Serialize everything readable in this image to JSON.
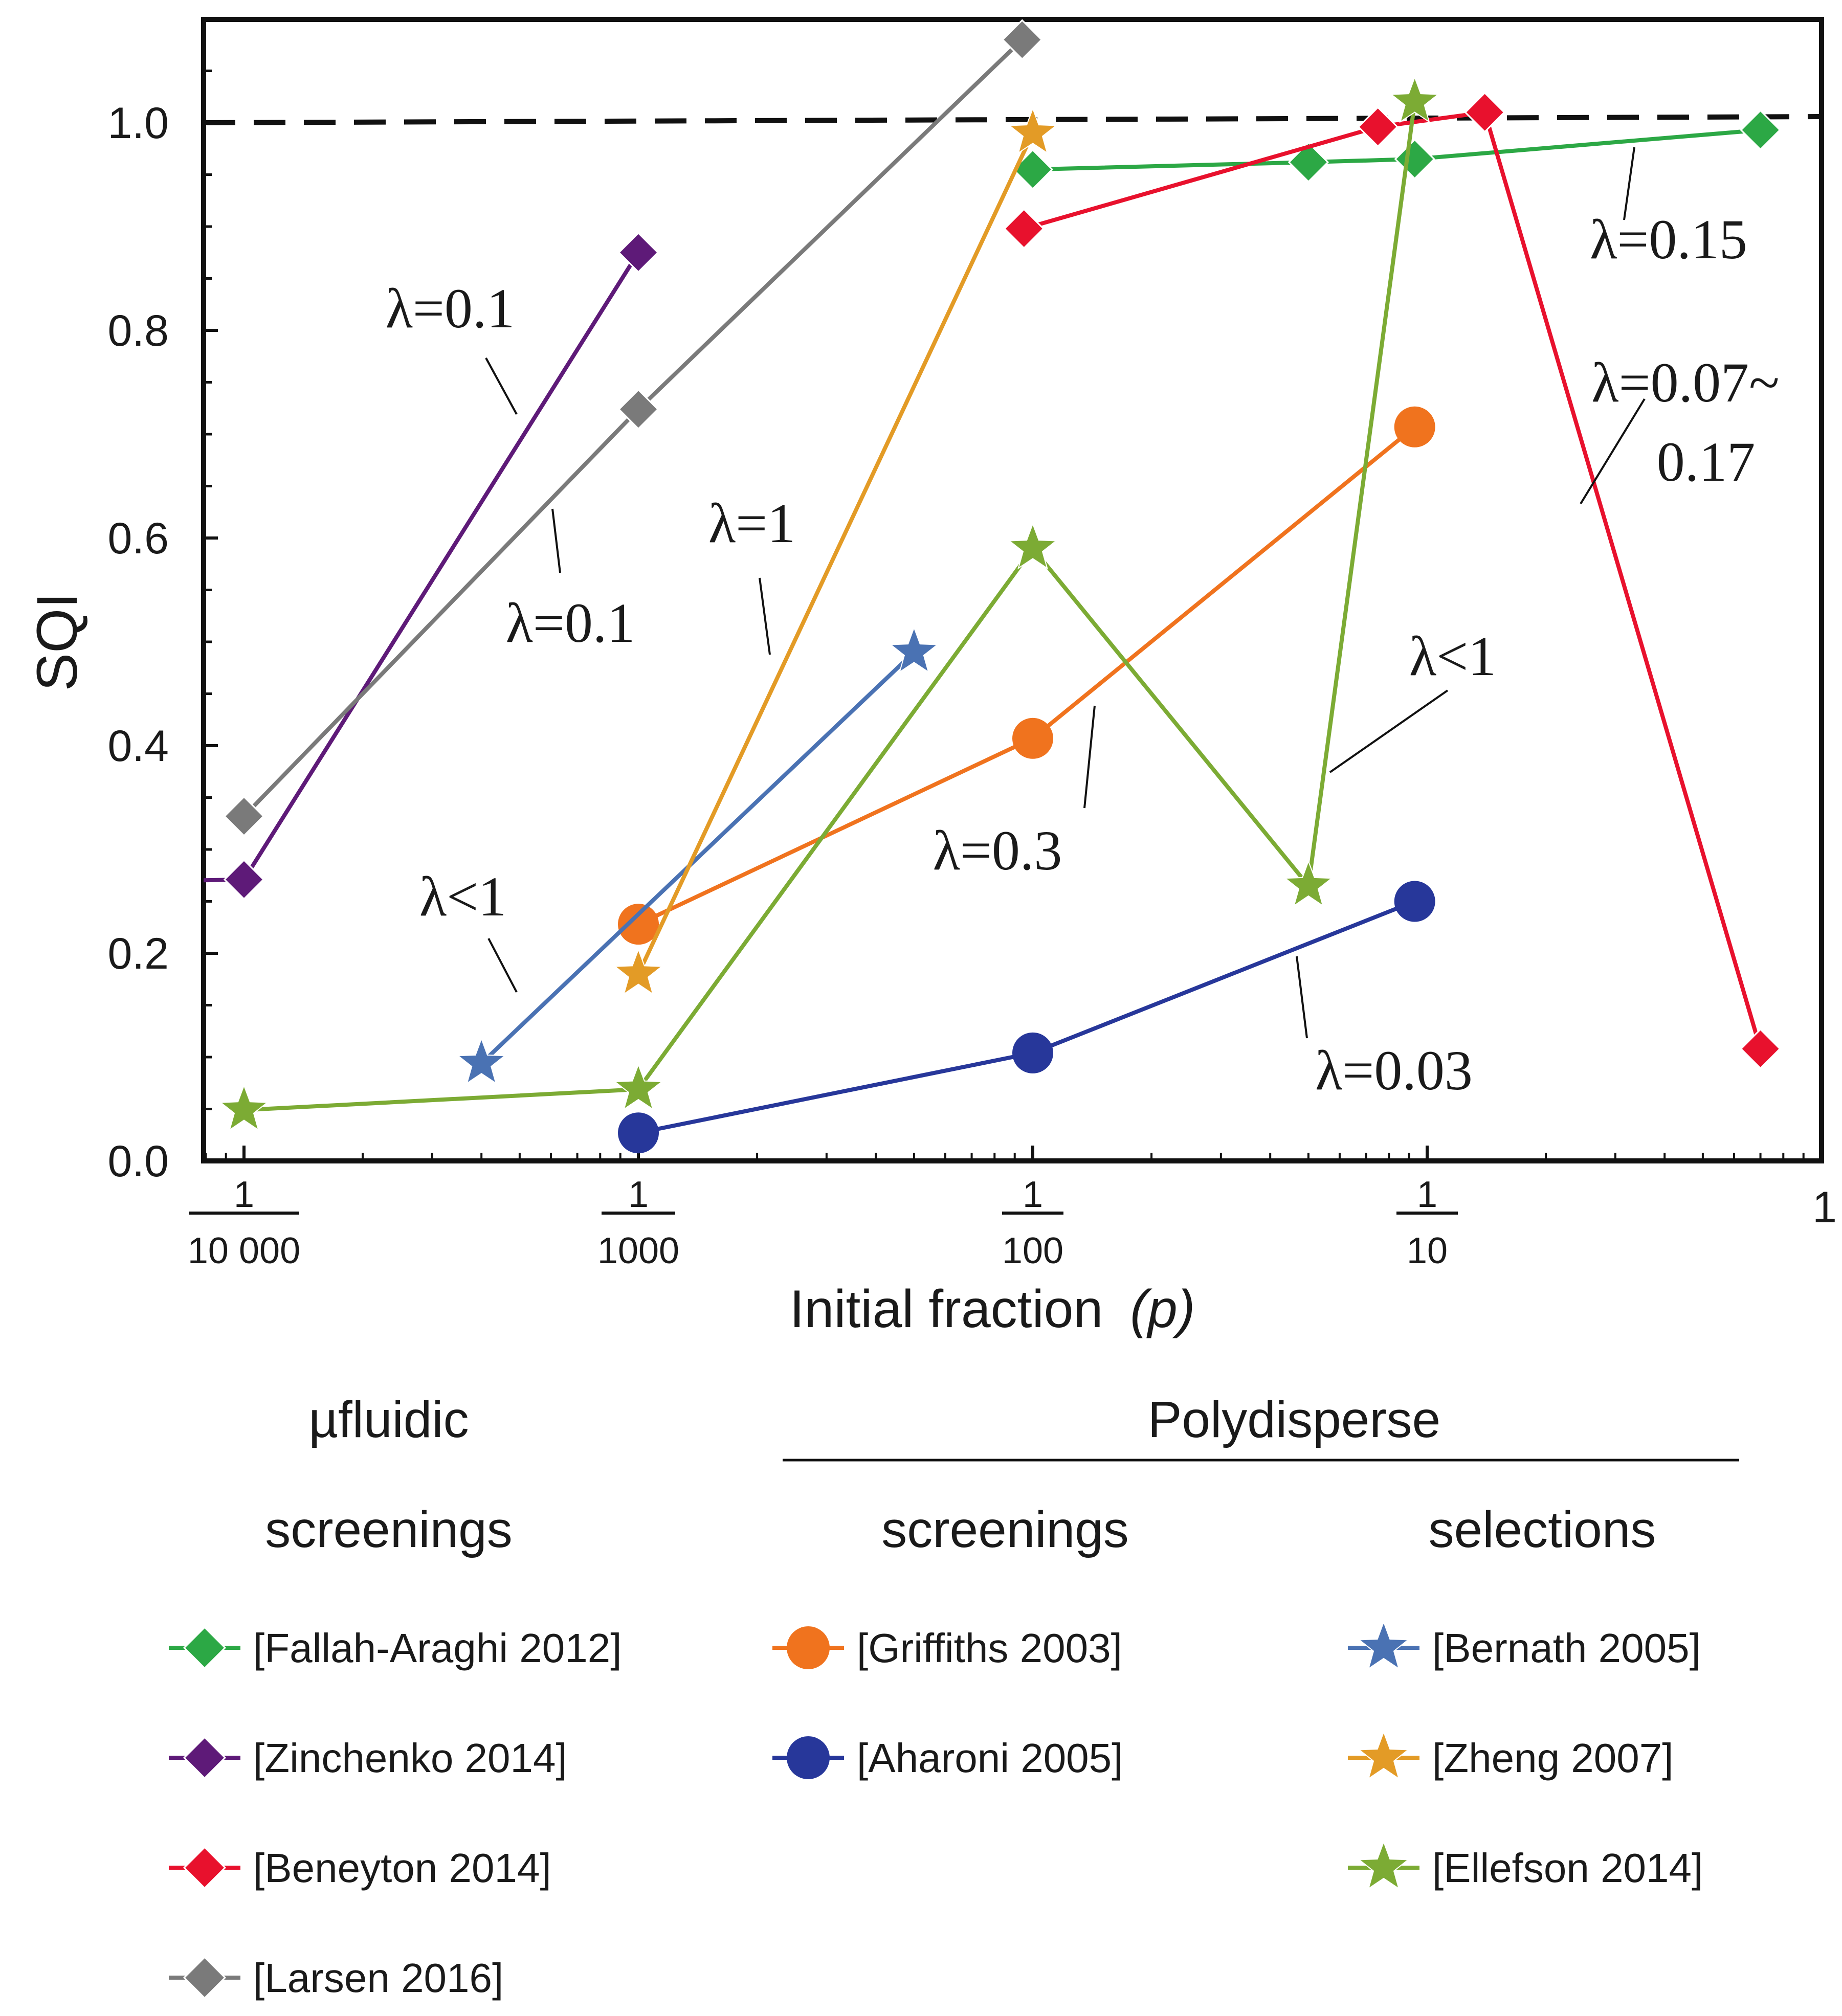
{
  "chart_data": {
    "type": "line",
    "xscale": "log",
    "xlim": [
      7e-05,
      1
    ],
    "ylim": [
      0,
      1.1
    ],
    "ylabel": "SQI",
    "xlabel": "Initial fraction",
    "xlabel_var": "(p)",
    "reference_line": {
      "y": 1.0,
      "style": "dashed"
    },
    "yticks": [
      "0.0",
      "0.2",
      "0.4",
      "0.6",
      "0.8",
      "1.0"
    ],
    "xticks": [
      {
        "num": "1",
        "den": "10 000",
        "value": 0.0001
      },
      {
        "num": "1",
        "den": "1000",
        "value": 0.001
      },
      {
        "num": "1",
        "den": "100",
        "value": 0.01
      },
      {
        "num": "1",
        "den": "10",
        "value": 0.1
      },
      {
        "num": "1",
        "den": "",
        "value": 1
      }
    ],
    "series": [
      {
        "name": "[Fallah-Araghi 2012]",
        "group": "µfluidic screenings",
        "marker": "diamond",
        "color": "#2ca845",
        "points": [
          [
            0.01,
            0.955
          ],
          [
            0.05,
            0.962
          ],
          [
            0.093,
            0.965
          ],
          [
            0.7,
            0.993
          ]
        ]
      },
      {
        "name": "[Zinchenko 2014]",
        "group": "µfluidic screenings",
        "marker": "diamond",
        "color": "#5e1a78",
        "points": [
          [
            7e-05,
            0.27
          ],
          [
            0.0001,
            0.271
          ],
          [
            0.001,
            0.875
          ]
        ]
      },
      {
        "name": "[Beneyton 2014]",
        "group": "µfluidic screenings",
        "marker": "diamond",
        "color": "#e8112d",
        "points": [
          [
            0.0095,
            0.898
          ],
          [
            0.075,
            0.996
          ],
          [
            0.14,
            1.01
          ],
          [
            0.7,
            0.108
          ]
        ]
      },
      {
        "name": "[Larsen 2016]",
        "group": "µfluidic screenings",
        "marker": "diamond",
        "color": "#7a7a7a",
        "points": [
          [
            0.0001,
            0.332
          ],
          [
            0.001,
            0.724
          ],
          [
            0.0094,
            1.08
          ]
        ]
      },
      {
        "name": "[Griffiths 2003]",
        "group": "Polydisperse screenings",
        "marker": "circle",
        "color": "#f0731e",
        "points": [
          [
            0.001,
            0.228
          ],
          [
            0.01,
            0.407
          ],
          [
            0.093,
            0.707
          ]
        ]
      },
      {
        "name": "[Aharoni 2005]",
        "group": "Polydisperse screenings",
        "marker": "circle",
        "color": "#27379a",
        "points": [
          [
            0.001,
            0.027
          ],
          [
            0.01,
            0.104
          ],
          [
            0.093,
            0.25
          ]
        ]
      },
      {
        "name": "[Bernath 2005]",
        "group": "Polydisperse selections",
        "marker": "star",
        "color": "#4a72b3",
        "points": [
          [
            0.0004,
            0.094
          ],
          [
            0.005,
            0.49
          ]
        ]
      },
      {
        "name": "[Zheng 2007]",
        "group": "Polydisperse selections",
        "marker": "star",
        "color": "#e39b26",
        "points": [
          [
            0.001,
            0.18
          ],
          [
            0.01,
            0.99
          ]
        ]
      },
      {
        "name": "[Ellefson 2014]",
        "group": "Polydisperse selections",
        "marker": "star",
        "color": "#7cab34",
        "points": [
          [
            0.0001,
            0.049
          ],
          [
            0.001,
            0.069
          ],
          [
            0.01,
            0.59
          ],
          [
            0.05,
            0.265
          ],
          [
            0.093,
            1.02
          ]
        ]
      }
    ],
    "annotations": [
      {
        "text": "λ=0.1",
        "target": "[Zinchenko 2014]"
      },
      {
        "text": "λ=0.1",
        "target": "[Larsen 2016]"
      },
      {
        "text": "λ=1",
        "target": "[Zheng 2007]"
      },
      {
        "text": "λ<1",
        "target": "[Bernath 2005]"
      },
      {
        "text": "λ=0.3",
        "target": "[Griffiths 2003]"
      },
      {
        "text": "λ<1",
        "target": "[Ellefson 2014]"
      },
      {
        "text": "λ=0.03",
        "target": "[Aharoni 2005]"
      },
      {
        "text": "λ=0.15",
        "target": "[Fallah-Araghi 2012]"
      },
      {
        "text": "λ=0.07~",
        "text2": "0.17",
        "target": "[Beneyton 2014]"
      }
    ]
  },
  "legend": {
    "microfluidic_head1": "µfluidic",
    "microfluidic_head2": "screenings",
    "polydisperse_head": "Polydisperse",
    "screenings_head": "screenings",
    "selections_head": "selections"
  }
}
